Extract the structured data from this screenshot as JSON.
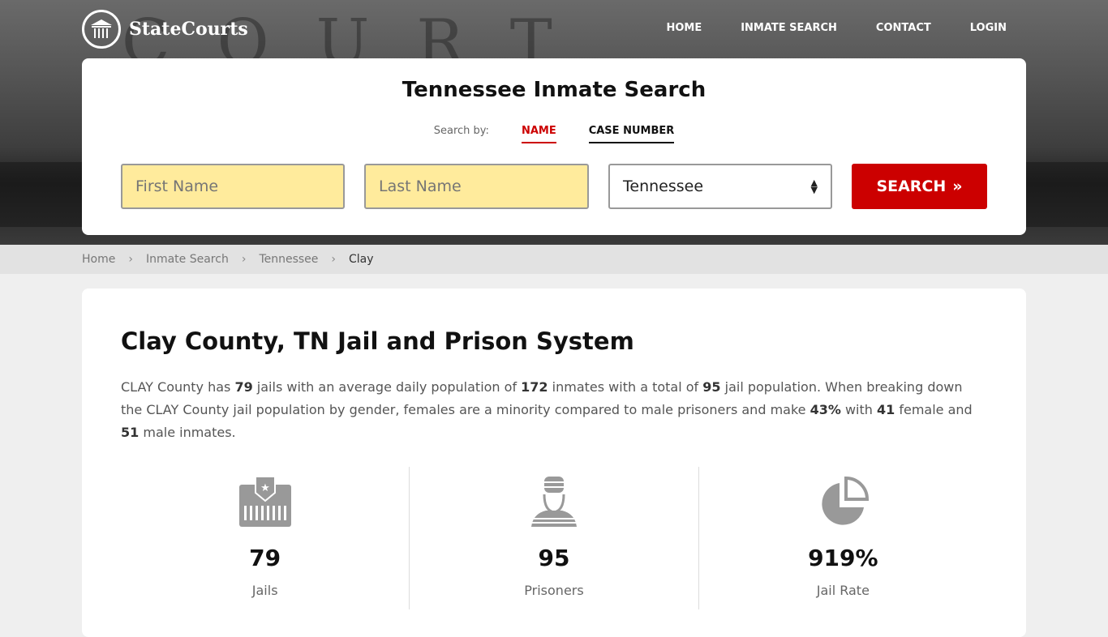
{
  "brand": {
    "name": "StateCourts",
    "background_text": "COURT HOUSE"
  },
  "nav": [
    "HOME",
    "INMATE SEARCH",
    "CONTACT",
    "LOGIN"
  ],
  "search": {
    "title": "Tennessee Inmate Search",
    "search_by": "Search by:",
    "tabs": [
      "NAME",
      "CASE NUMBER"
    ],
    "active_tab": "NAME",
    "first_placeholder": "First Name",
    "last_placeholder": "Last Name",
    "state": "Tennessee",
    "button": "SEARCH",
    "button_icon": "double-chevron-right"
  },
  "breadcrumb": [
    "Home",
    "Inmate Search",
    "Tennessee",
    "Clay"
  ],
  "content": {
    "title": "Clay County, TN Jail and Prison System",
    "p": [
      "CLAY County has ",
      "79",
      " jails with an average daily population of ",
      "172",
      " inmates with a total of ",
      "95",
      " jail population. When breaking down the CLAY County jail population by gender, females are a minority compared to male prisoners and make ",
      "43%",
      " with ",
      "41",
      " female and ",
      "51",
      " male inmates."
    ]
  },
  "stats": [
    {
      "icon": "jail-icon",
      "value": "79",
      "label": "Jails"
    },
    {
      "icon": "prisoner-icon",
      "value": "95",
      "label": "Prisoners"
    },
    {
      "icon": "pie-chart-icon",
      "value": "919%",
      "label": "Jail Rate"
    }
  ],
  "colors": {
    "accent": "#cc0000",
    "input_bg": "#ffeb9c",
    "icon": "#999999"
  }
}
